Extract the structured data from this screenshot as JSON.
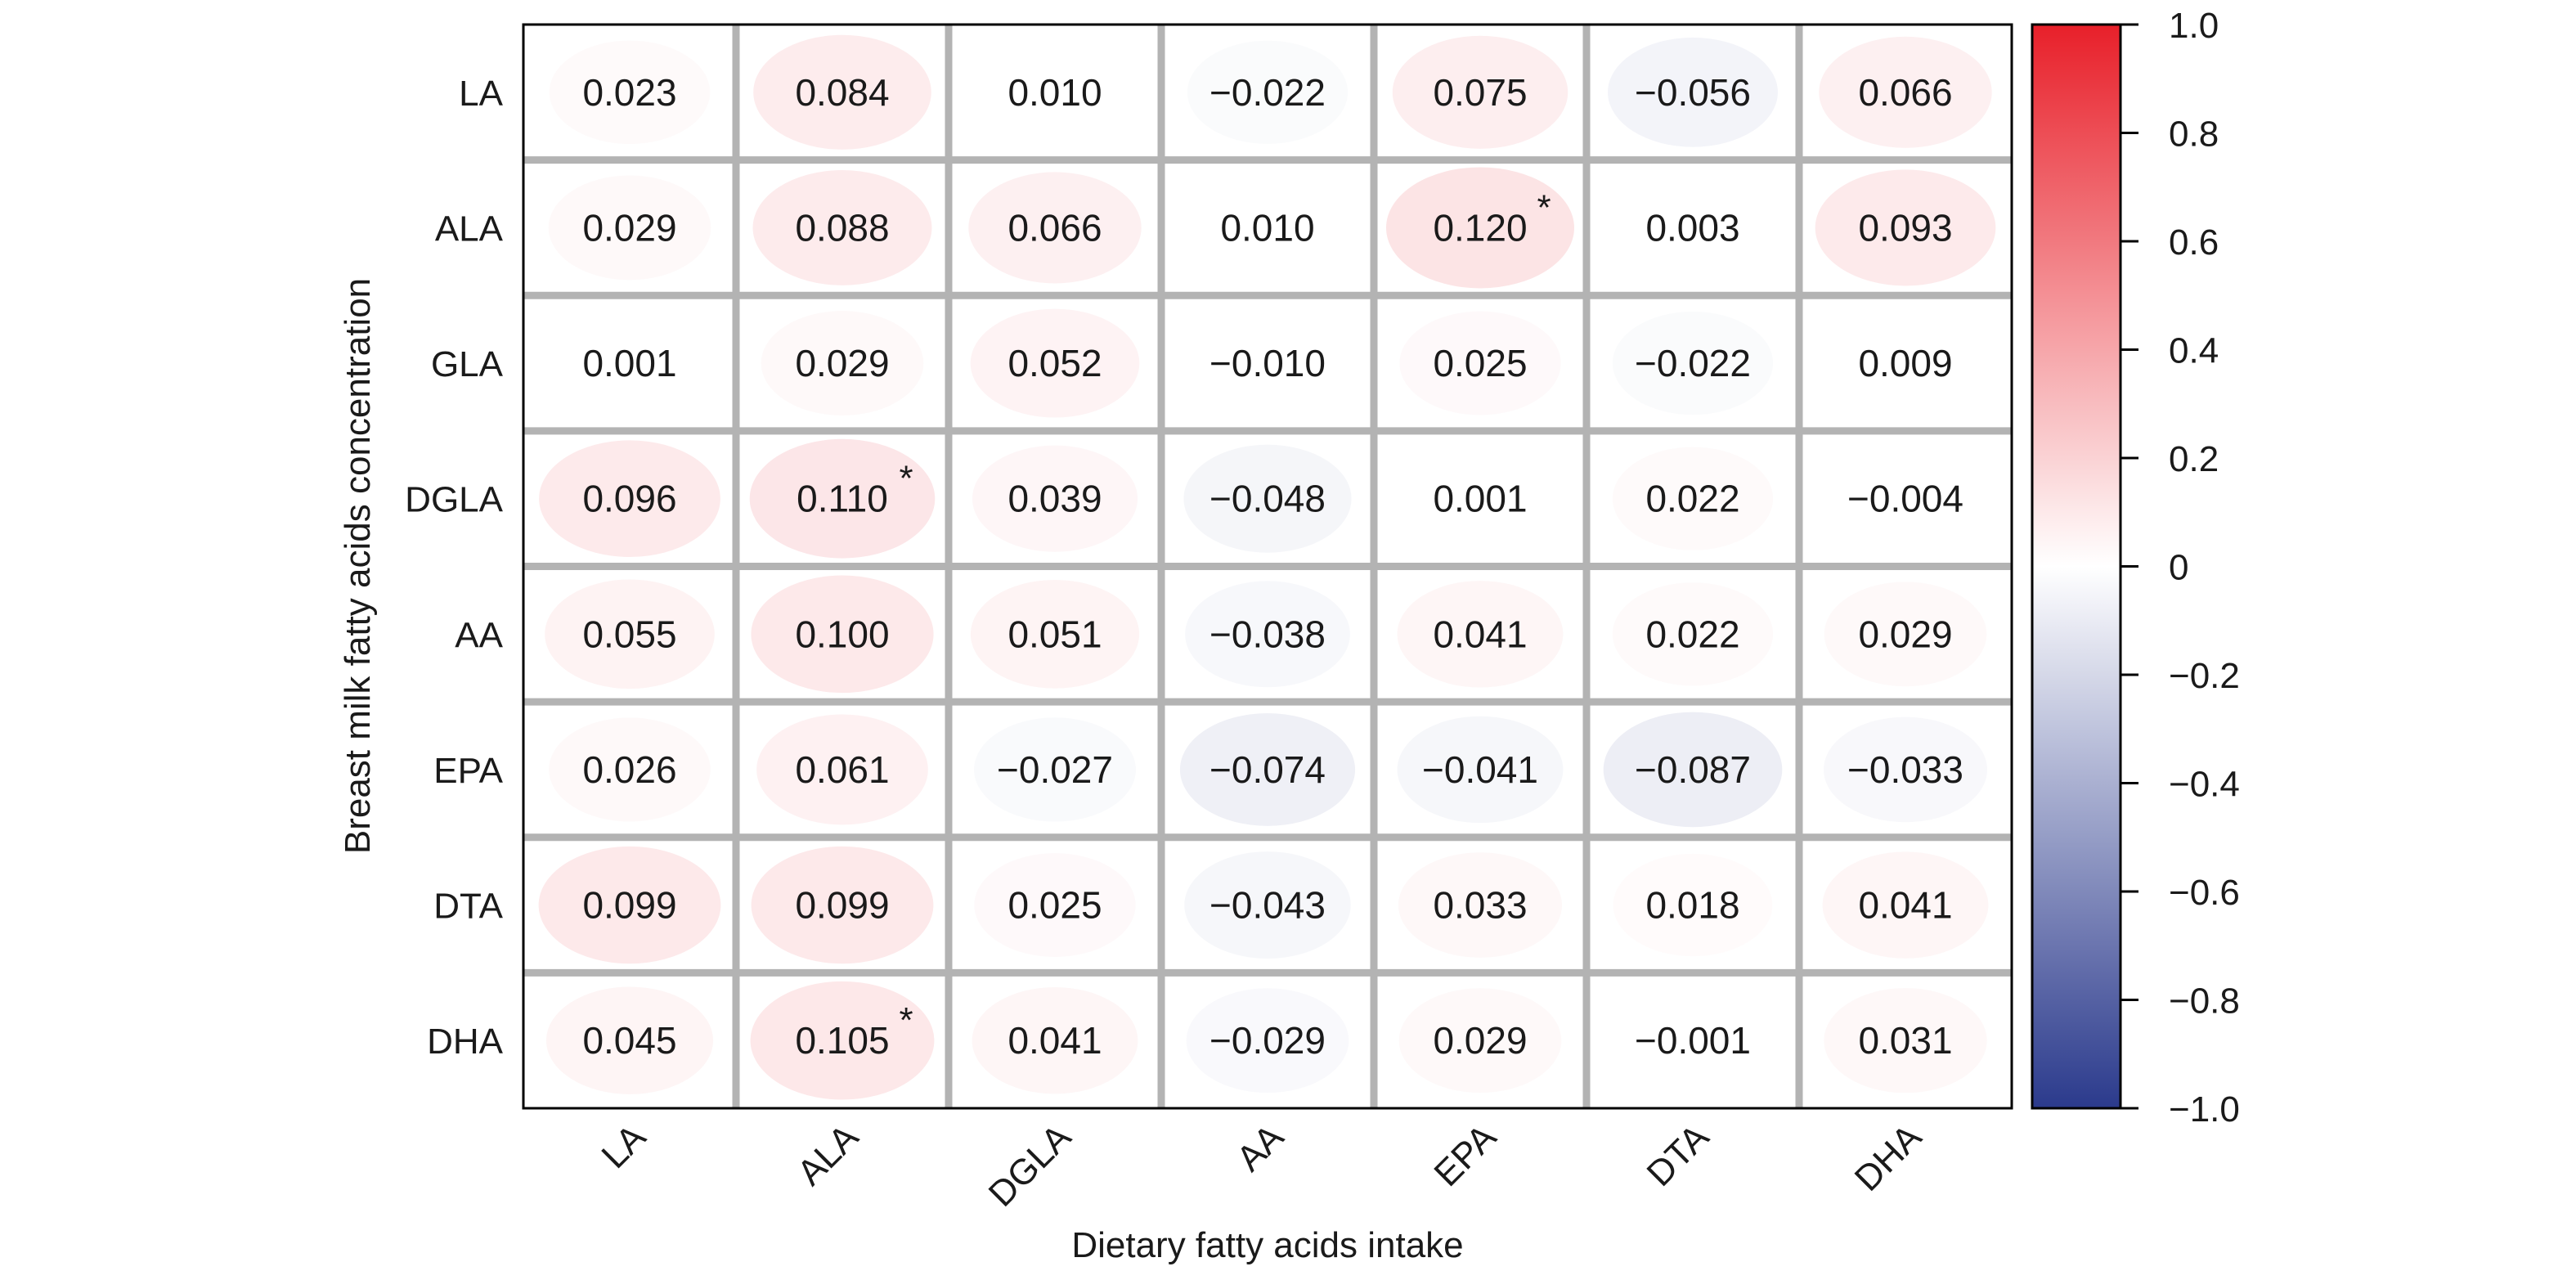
{
  "chart_data": {
    "type": "heatmap",
    "title": "",
    "xlabel": "Dietary fatty acids intake",
    "ylabel": "Breast milk fatty acids concentration",
    "x_categories": [
      "LA",
      "ALA",
      "DGLA",
      "AA",
      "EPA",
      "DTA",
      "DHA"
    ],
    "y_categories": [
      "LA",
      "ALA",
      "GLA",
      "DGLA",
      "AA",
      "EPA",
      "DTA",
      "DHA"
    ],
    "values": [
      [
        0.023,
        0.084,
        0.01,
        -0.022,
        0.075,
        -0.056,
        0.066
      ],
      [
        0.029,
        0.088,
        0.066,
        0.01,
        0.12,
        0.003,
        0.093
      ],
      [
        0.001,
        0.029,
        0.052,
        -0.01,
        0.025,
        -0.022,
        0.009
      ],
      [
        0.096,
        0.11,
        0.039,
        -0.048,
        0.001,
        0.022,
        -0.004
      ],
      [
        0.055,
        0.1,
        0.051,
        -0.038,
        0.041,
        0.022,
        0.029
      ],
      [
        0.026,
        0.061,
        -0.027,
        -0.074,
        -0.041,
        -0.087,
        -0.033
      ],
      [
        0.099,
        0.099,
        0.025,
        -0.043,
        0.033,
        0.018,
        0.041
      ],
      [
        0.045,
        0.105,
        0.041,
        -0.029,
        0.029,
        -0.001,
        0.031
      ]
    ],
    "labels": [
      [
        "0.023",
        "0.084",
        "0.010",
        "−0.022",
        "0.075",
        "−0.056",
        "0.066"
      ],
      [
        "0.029",
        "0.088",
        "0.066",
        "0.010",
        "0.120",
        "0.003",
        "0.093"
      ],
      [
        "0.001",
        "0.029",
        "0.052",
        "−0.010",
        "0.025",
        "−0.022",
        "0.009"
      ],
      [
        "0.096",
        "0.110",
        "0.039",
        "−0.048",
        "0.001",
        "0.022",
        "−0.004"
      ],
      [
        "0.055",
        "0.100",
        "0.051",
        "−0.038",
        "0.041",
        "0.022",
        "0.029"
      ],
      [
        "0.026",
        "0.061",
        "−0.027",
        "−0.074",
        "−0.041",
        "−0.087",
        "−0.033"
      ],
      [
        "0.099",
        "0.099",
        "0.025",
        "−0.043",
        "0.033",
        "0.018",
        "0.041"
      ],
      [
        "0.045",
        "0.105",
        "0.041",
        "−0.029",
        "0.029",
        "−0.001",
        "0.031"
      ]
    ],
    "significance_marker": "*",
    "significant": [
      [
        false,
        false,
        false,
        false,
        false,
        false,
        false
      ],
      [
        false,
        false,
        false,
        false,
        true,
        false,
        false
      ],
      [
        false,
        false,
        false,
        false,
        false,
        false,
        false
      ],
      [
        false,
        true,
        false,
        false,
        false,
        false,
        false
      ],
      [
        false,
        false,
        false,
        false,
        false,
        false,
        false
      ],
      [
        false,
        false,
        false,
        false,
        false,
        false,
        false
      ],
      [
        false,
        false,
        false,
        false,
        false,
        false,
        false
      ],
      [
        false,
        true,
        false,
        false,
        false,
        false,
        false
      ]
    ],
    "color_scale": {
      "min": -1.0,
      "max": 1.0,
      "low_color": "#2b3a8c",
      "mid_color": "#ffffff",
      "high_color": "#e8202a",
      "ticks": [
        1.0,
        0.8,
        0.6,
        0.4,
        0.2,
        0,
        -0.2,
        -0.4,
        -0.6,
        -0.8,
        -1.0
      ],
      "tick_labels": [
        "1.0",
        "0.8",
        "0.6",
        "0.4",
        "0.2",
        "0",
        "−0.2",
        "−0.4",
        "−0.6",
        "−0.8",
        "−1.0"
      ]
    },
    "grid": true,
    "legend_position": "right"
  }
}
